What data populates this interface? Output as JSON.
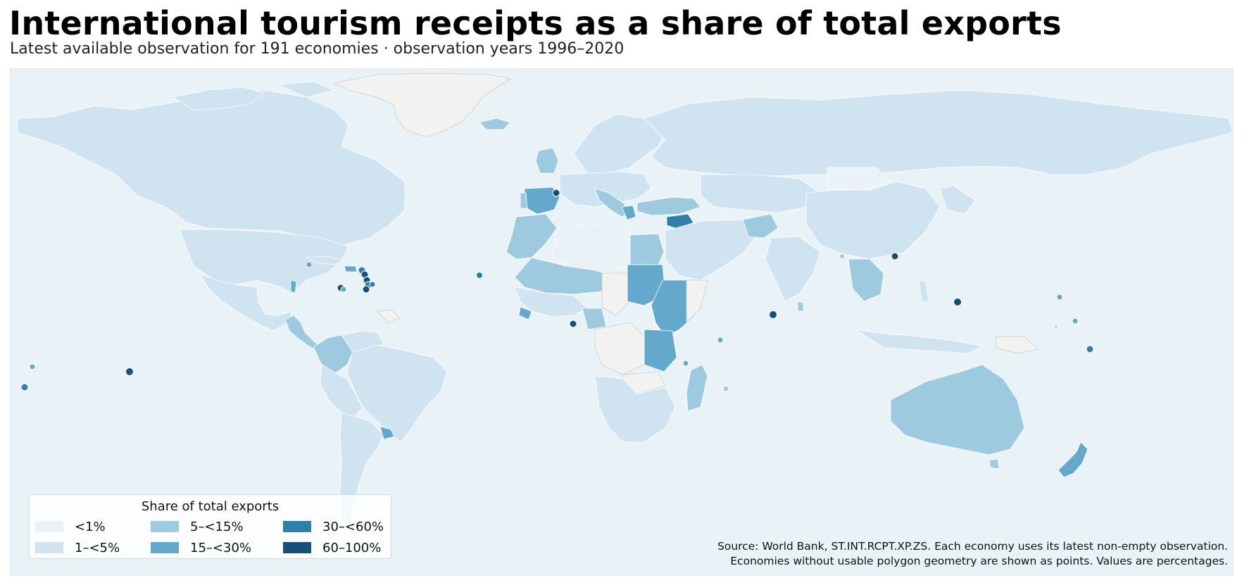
{
  "header": {
    "title": "International tourism receipts as a share of total exports",
    "subtitle": "Latest available observation for 191 economies · observation years 1996–2020"
  },
  "legend": {
    "title": "Share of total exports",
    "classes": [
      {
        "label": "<1%",
        "color": "#eaf2f8"
      },
      {
        "label": "1–<5%",
        "color": "#cfe3f0"
      },
      {
        "label": "5–<15%",
        "color": "#9ecae0"
      },
      {
        "label": "15–<30%",
        "color": "#64a9cb"
      },
      {
        "label": "30–<60%",
        "color": "#2e7faa"
      },
      {
        "label": "60–100%",
        "color": "#164f78"
      }
    ],
    "no_data_color": "#f2f3f1"
  },
  "source": {
    "line1": "Source: World Bank, ST.INT.RCPT.XP.ZS. Each economy uses its latest non-empty observation.",
    "line2": "Economies without usable polygon geometry are shown as points. Values are percentages."
  },
  "colors": {
    "ocean": "#e9f2f7",
    "border": "#ffffff"
  }
}
